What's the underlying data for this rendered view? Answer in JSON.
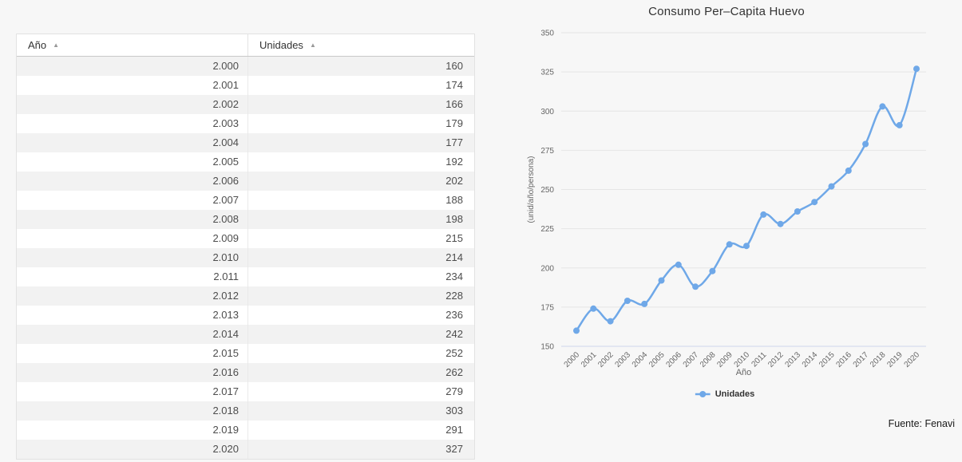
{
  "page": {
    "background": "#f7f7f7"
  },
  "table": {
    "columns": [
      {
        "label": "Año",
        "sort_icon": "▲",
        "sort_state": "ascending"
      },
      {
        "label": "Unidades",
        "sort_icon": "▲",
        "sort_state": "ascending"
      }
    ],
    "rows": [
      {
        "year": "2.000",
        "units": "160"
      },
      {
        "year": "2.001",
        "units": "174"
      },
      {
        "year": "2.002",
        "units": "166"
      },
      {
        "year": "2.003",
        "units": "179"
      },
      {
        "year": "2.004",
        "units": "177"
      },
      {
        "year": "2.005",
        "units": "192"
      },
      {
        "year": "2.006",
        "units": "202"
      },
      {
        "year": "2.007",
        "units": "188"
      },
      {
        "year": "2.008",
        "units": "198"
      },
      {
        "year": "2.009",
        "units": "215"
      },
      {
        "year": "2.010",
        "units": "214"
      },
      {
        "year": "2.011",
        "units": "234"
      },
      {
        "year": "2.012",
        "units": "228"
      },
      {
        "year": "2.013",
        "units": "236"
      },
      {
        "year": "2.014",
        "units": "242"
      },
      {
        "year": "2.015",
        "units": "252"
      },
      {
        "year": "2.016",
        "units": "262"
      },
      {
        "year": "2.017",
        "units": "279"
      },
      {
        "year": "2.018",
        "units": "303"
      },
      {
        "year": "2.019",
        "units": "291"
      },
      {
        "year": "2.020",
        "units": "327"
      }
    ]
  },
  "chart": {
    "source_note": "Fuente: Fenavi"
  },
  "chart_data": {
    "type": "line",
    "title": "Consumo Per–Capita Huevo",
    "xlabel": "Año",
    "ylabel": "(unid/año/persona)",
    "categories": [
      "2000",
      "2001",
      "2002",
      "2003",
      "2004",
      "2005",
      "2006",
      "2007",
      "2008",
      "2009",
      "2010",
      "2011",
      "2012",
      "2013",
      "2014",
      "2015",
      "2016",
      "2017",
      "2018",
      "2019",
      "2020"
    ],
    "series": [
      {
        "name": "Unidades",
        "values": [
          160,
          174,
          166,
          179,
          177,
          192,
          202,
          188,
          198,
          215,
          214,
          234,
          228,
          236,
          242,
          252,
          262,
          279,
          303,
          291,
          327
        ]
      }
    ],
    "ylim": [
      150,
      350
    ],
    "ytick_step": 25,
    "line_color": "#6fa8e8",
    "grid_color": "#e6e6e6",
    "axis_line_color": "#ccd6eb",
    "tick_label_color": "#666666",
    "grid": true,
    "line_style": "spline",
    "markers": true,
    "legend_position": "bottom"
  }
}
